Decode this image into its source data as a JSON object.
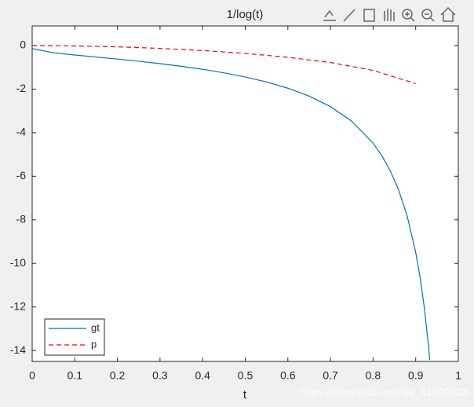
{
  "chart_data": {
    "type": "line",
    "title": "1/log(t)",
    "xlabel": "t",
    "series": [
      {
        "name": "gt",
        "color": "#0072bd",
        "dash": "solid",
        "x": [
          0.001,
          0.05,
          0.1,
          0.15,
          0.2,
          0.25,
          0.3,
          0.35,
          0.4,
          0.45,
          0.5,
          0.55,
          0.6,
          0.65,
          0.7,
          0.75,
          0.8,
          0.82,
          0.84,
          0.86,
          0.88,
          0.9,
          0.91,
          0.92,
          0.93,
          0.933
        ],
        "values": [
          -0.145,
          -0.334,
          -0.434,
          -0.527,
          -0.621,
          -0.721,
          -0.831,
          -0.952,
          -1.091,
          -1.252,
          -1.443,
          -1.673,
          -1.958,
          -2.321,
          -2.804,
          -3.476,
          -4.481,
          -5.039,
          -5.736,
          -6.63,
          -7.822,
          -9.491,
          -10.603,
          -11.993,
          -13.78,
          -14.42
        ]
      },
      {
        "name": "p",
        "color": "#ff0000",
        "dash": "dashed",
        "x": [
          0,
          0.1,
          0.2,
          0.3,
          0.4,
          0.5,
          0.6,
          0.7,
          0.8,
          0.9
        ],
        "values": [
          0,
          -0.02,
          -0.06,
          -0.13,
          -0.23,
          -0.36,
          -0.54,
          -0.78,
          -1.14,
          -1.75
        ]
      }
    ],
    "xlim": [
      0,
      1
    ],
    "xticks": [
      0,
      0.1,
      0.2,
      0.3,
      0.4,
      0.5,
      0.6,
      0.7,
      0.8,
      0.9,
      1
    ],
    "ylim": [
      -14.5,
      0.9
    ],
    "yticks": [
      -14,
      -12,
      -10,
      -8,
      -6,
      -4,
      -2,
      0
    ],
    "legend": "lower left",
    "annotations": [
      "https://blog.csdn.net/qq_41400823"
    ]
  }
}
